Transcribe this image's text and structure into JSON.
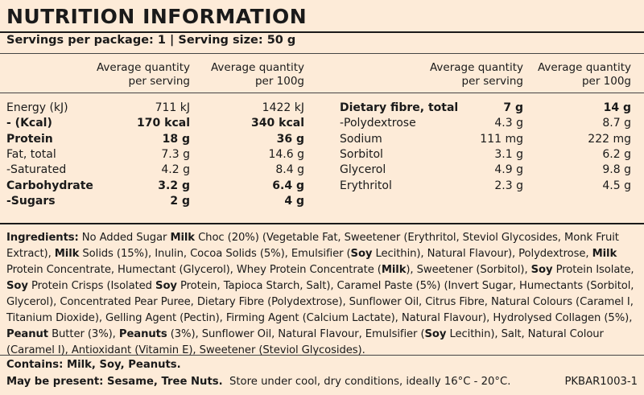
{
  "title": "NUTRITION INFORMATION",
  "servings": "Servings per package: 1 | Serving size: 50 g",
  "left_table": {
    "col_headers": [
      {
        "line1": "Average quantity",
        "line2": "per serving"
      },
      {
        "line1": "Average quantity",
        "line2": "per 100g"
      }
    ],
    "rows": [
      {
        "label": "Energy (kJ)",
        "serving": "711 kJ",
        "per100": "1422 kJ",
        "bold": false
      },
      {
        "label": "- (Kcal)",
        "serving": "170 kcal",
        "per100": "340 kcal",
        "bold": true
      },
      {
        "label": "Protein",
        "serving": "18 g",
        "per100": "36 g",
        "bold": true
      },
      {
        "label": "Fat, total",
        "serving": "7.3 g",
        "per100": "14.6 g",
        "bold": false
      },
      {
        "label": "-Saturated",
        "serving": "4.2 g",
        "per100": "8.4 g",
        "bold": false
      },
      {
        "label": "Carbohydrate",
        "serving": "3.2 g",
        "per100": "6.4 g",
        "bold": true
      },
      {
        "label": "-Sugars",
        "serving": "2 g",
        "per100": "4 g",
        "bold": true
      }
    ]
  },
  "right_table": {
    "col_headers": [
      {
        "line1": "Average quantity",
        "line2": "per serving"
      },
      {
        "line1": "Average quantity",
        "line2": "per 100g"
      }
    ],
    "rows": [
      {
        "label": "Dietary fibre, total",
        "serving": "7 g",
        "per100": "14 g",
        "bold": true
      },
      {
        "label": "-Polydextrose",
        "serving": "4.3 g",
        "per100": "8.7 g",
        "bold": false
      },
      {
        "label": "Sodium",
        "serving": "111 mg",
        "per100": "222 mg",
        "bold": false
      },
      {
        "label": "Sorbitol",
        "serving": "3.1 g",
        "per100": "6.2 g",
        "bold": false
      },
      {
        "label": "Glycerol",
        "serving": "4.9 g",
        "per100": "9.8 g",
        "bold": false
      },
      {
        "label": "Erythritol",
        "serving": "2.3 g",
        "per100": "4.5 g",
        "bold": false
      }
    ]
  },
  "ingredients": [
    {
      "t": "Ingredients:",
      "b": true
    },
    {
      "t": " No Added Sugar ",
      "b": false
    },
    {
      "t": "Milk",
      "b": true
    },
    {
      "t": " Choc (20%) (Vegetable Fat, Sweetener (Erythritol, Steviol Glycosides, Monk Fruit Extract), ",
      "b": false
    },
    {
      "t": "Milk",
      "b": true
    },
    {
      "t": " Solids (15%), Inulin, Cocoa Solids (5%), Emulsifier (",
      "b": false
    },
    {
      "t": "Soy",
      "b": true
    },
    {
      "t": " Lecithin), Natural Flavour), Polydextrose, ",
      "b": false
    },
    {
      "t": "Milk",
      "b": true
    },
    {
      "t": " Protein Concentrate, Humectant (Glycerol), Whey Protein Concentrate (",
      "b": false
    },
    {
      "t": "Milk",
      "b": true
    },
    {
      "t": "), Sweetener (Sorbitol), ",
      "b": false
    },
    {
      "t": "Soy",
      "b": true
    },
    {
      "t": " Protein Isolate, ",
      "b": false
    },
    {
      "t": "Soy",
      "b": true
    },
    {
      "t": " Protein Crisps (Isolated ",
      "b": false
    },
    {
      "t": "Soy",
      "b": true
    },
    {
      "t": " Protein, Tapioca Starch, Salt), Caramel Paste (5%) (Invert Sugar, Humectants (Sorbitol, Glycerol), Concentrated Pear Puree, Dietary Fibre (Polydextrose), Sunflower Oil, Citrus Fibre, Natural Colours (Caramel I, Titanium Dioxide), Gelling Agent (Pectin), Firming Agent (Calcium Lactate), Natural Flavour), Hydrolysed Collagen (5%), ",
      "b": false
    },
    {
      "t": "Peanut",
      "b": true
    },
    {
      "t": " Butter (3%), ",
      "b": false
    },
    {
      "t": "Peanuts",
      "b": true
    },
    {
      "t": " (3%), Sunflower Oil, Natural Flavour, Emulsifier (",
      "b": false
    },
    {
      "t": "Soy",
      "b": true
    },
    {
      "t": " Lecithin), Salt, Natural Colour (Caramel I), Antioxidant (Vitamin E), Sweetener (Steviol Glycosides).",
      "b": false
    }
  ],
  "contains": "Contains: Milk, Soy, Peanuts.",
  "may_be_present": "May be present: Sesame, Tree Nuts.",
  "storage": "Store under cool, dry conditions, ideally 16°C - 20°C.",
  "product_code": "PKBAR1003-1"
}
